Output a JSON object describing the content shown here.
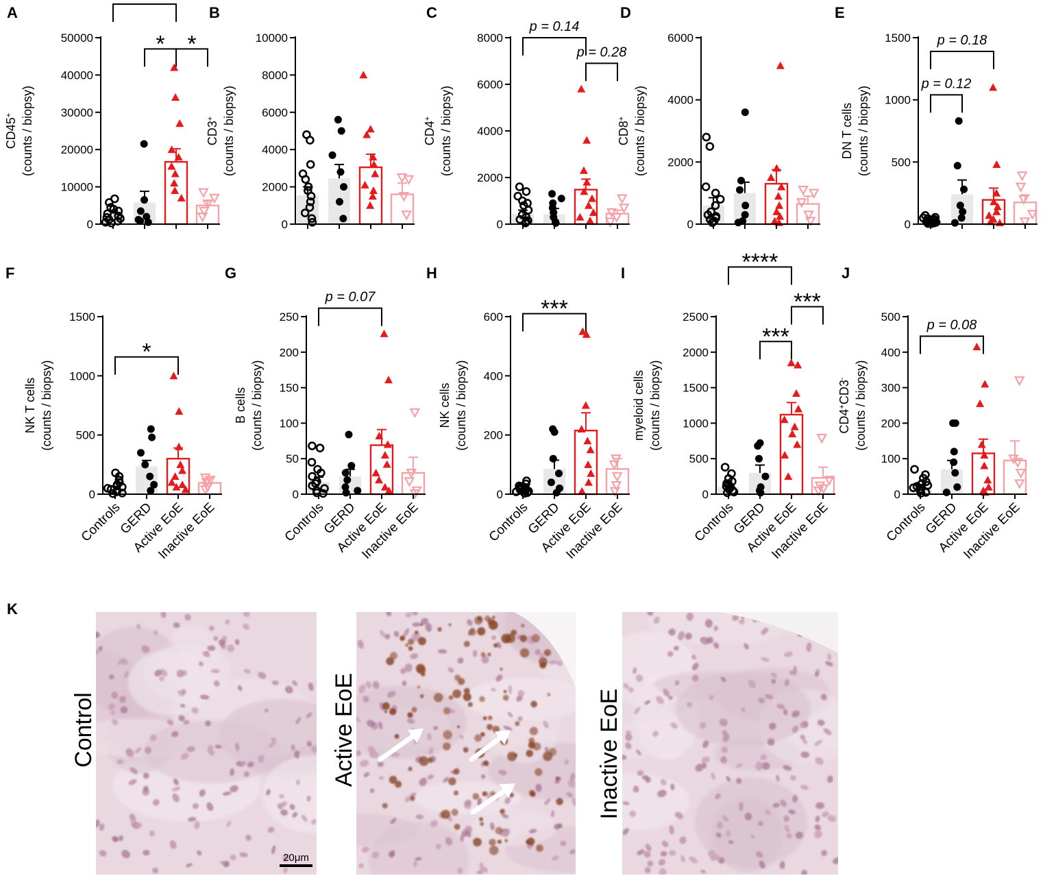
{
  "colors": {
    "controls": "#000000",
    "gerd": "#000000",
    "gerd_bar": "#e8e8e8",
    "active": "#e41a1c",
    "inactive": "#f4a1a8",
    "micro_bg": "#e9d8e0",
    "stain": "#8a4a2a"
  },
  "categories": [
    "Controls",
    "GERD",
    "Active EoE",
    "Inactive EoE"
  ],
  "chart_data": [
    {
      "panel": "A",
      "type": "bar",
      "ylabel": [
        "CD45⁺",
        "(counts / biopsy)"
      ],
      "ylim": [
        0,
        50000
      ],
      "ticks": [
        0,
        10000,
        20000,
        30000,
        40000,
        50000
      ],
      "tick_labels": [
        "0",
        "10000",
        "20000",
        "30000",
        "40000",
        "50000"
      ],
      "means": [
        2800,
        5800,
        16700,
        5000
      ],
      "sem": [
        700,
        3000,
        3500,
        1200
      ],
      "points": [
        [
          6800,
          5800,
          4500,
          3500,
          2800,
          2200,
          1800,
          1500,
          1200,
          800,
          500,
          300,
          4000
        ],
        [
          21500,
          6500,
          3500,
          2000,
          1200,
          800,
          500
        ],
        [
          42000,
          34000,
          27000,
          20000,
          18000,
          15500,
          13500,
          11000,
          9000,
          7000
        ],
        [
          8500,
          7000,
          5500,
          3500,
          2000
        ]
      ],
      "annotations": [
        {
          "text": "***",
          "from": 0,
          "to": 2,
          "y": 59000
        },
        {
          "text": "*",
          "from": 1,
          "to": 2,
          "y": 47000
        },
        {
          "text": "*",
          "from": 2,
          "to": 3,
          "y": 47000
        }
      ]
    },
    {
      "panel": "B",
      "type": "bar",
      "ylabel": [
        "CD3⁺",
        "(counts / biopsy)"
      ],
      "ylim": [
        0,
        10000
      ],
      "ticks": [
        0,
        2000,
        4000,
        6000,
        8000,
        10000
      ],
      "tick_labels": [
        "0",
        "2000",
        "4000",
        "6000",
        "8000",
        "10000"
      ],
      "means": [
        1550,
        2450,
        3050,
        1600
      ],
      "sem": [
        450,
        750,
        700,
        600
      ],
      "points": [
        [
          4800,
          4500,
          3200,
          2700,
          2000,
          1500,
          1200,
          900,
          600,
          300,
          100,
          1800,
          2400
        ],
        [
          5600,
          5000,
          3700,
          2800,
          2000,
          1200,
          300
        ],
        [
          8000,
          5100,
          4800,
          3600,
          3200,
          2700,
          2100,
          1800,
          1500,
          1000
        ],
        [
          2500,
          2400,
          1500,
          500
        ]
      ],
      "annotations": []
    },
    {
      "panel": "C",
      "type": "bar",
      "ylabel": [
        "CD4⁺",
        "(counts / biopsy)"
      ],
      "ylim": [
        0,
        8000
      ],
      "ticks": [
        0,
        2000,
        4000,
        6000,
        8000
      ],
      "tick_labels": [
        "0",
        "2000",
        "4000",
        "6000",
        "8000"
      ],
      "means": [
        450,
        420,
        1480,
        450
      ],
      "sem": [
        150,
        250,
        450,
        150
      ],
      "points": [
        [
          1600,
          1400,
          1200,
          1000,
          800,
          600,
          400,
          300,
          200,
          150,
          100,
          50,
          900
        ],
        [
          1300,
          1100,
          900,
          700,
          500,
          300,
          100,
          50
        ],
        [
          5800,
          3600,
          2300,
          1800,
          1400,
          1100,
          800,
          500,
          300,
          150
        ],
        [
          1100,
          700,
          500,
          300,
          100
        ]
      ],
      "annotations": [
        {
          "text": "p = 0.14",
          "italic": true,
          "from": 0,
          "to": 2,
          "y": 8000
        },
        {
          "text": "p = 0.28",
          "italic": true,
          "from": 2,
          "to": 3,
          "y": 6900
        }
      ]
    },
    {
      "panel": "D",
      "type": "bar",
      "ylabel": [
        "CD8⁺",
        "(counts / biopsy)"
      ],
      "ylim": [
        0,
        6000
      ],
      "ticks": [
        0,
        2000,
        4000,
        6000
      ],
      "tick_labels": [
        "0",
        "2000",
        "4000",
        "6000"
      ],
      "means": [
        600,
        1000,
        1300,
        650
      ],
      "sem": [
        250,
        350,
        450,
        250
      ],
      "points": [
        [
          2800,
          2500,
          1000,
          800,
          600,
          400,
          300,
          200,
          100,
          50,
          1200,
          150,
          250
        ],
        [
          3600,
          1400,
          1100,
          600,
          300,
          100,
          50
        ],
        [
          5100,
          1800,
          1500,
          1200,
          900,
          600,
          400,
          250,
          100,
          50
        ],
        [
          1100,
          1000,
          700,
          300,
          100
        ]
      ],
      "annotations": []
    },
    {
      "panel": "E",
      "type": "bar",
      "ylabel": [
        "DN T cells",
        "(counts / biopsy)"
      ],
      "ylim": [
        0,
        1500
      ],
      "ticks": [
        0,
        500,
        1000,
        1500
      ],
      "tick_labels": [
        "0",
        "500",
        "1000",
        "1500"
      ],
      "means": [
        30,
        240,
        195,
        175
      ],
      "sem": [
        10,
        115,
        95,
        60
      ],
      "points": [
        [
          70,
          55,
          45,
          35,
          30,
          25,
          20,
          15,
          10,
          5,
          3,
          40,
          50
        ],
        [
          830,
          470,
          280,
          150,
          100,
          50,
          10
        ],
        [
          1100,
          480,
          250,
          180,
          140,
          100,
          70,
          40,
          20,
          10
        ],
        [
          390,
          300,
          200,
          80,
          20
        ]
      ],
      "annotations": [
        {
          "text": "p = 0.18",
          "italic": true,
          "from": 0,
          "to": 2,
          "y": 1390
        },
        {
          "text": "p = 0.12",
          "italic": true,
          "from": 0,
          "to": 1,
          "y": 1040
        }
      ]
    },
    {
      "panel": "F",
      "type": "bar",
      "ylabel": [
        "NK T cells",
        "(counts / biopsy)"
      ],
      "ylim": [
        0,
        1500
      ],
      "ticks": [
        0,
        500,
        1000,
        1500
      ],
      "tick_labels": [
        "0",
        "500",
        "1000",
        "1500"
      ],
      "means": [
        50,
        235,
        300,
        95
      ],
      "sem": [
        15,
        50,
        90,
        40
      ],
      "points": [
        [
          180,
          150,
          120,
          100,
          80,
          60,
          40,
          30,
          20,
          10,
          5,
          70,
          50
        ],
        [
          550,
          480,
          350,
          250,
          150,
          80,
          30
        ],
        [
          1000,
          700,
          400,
          250,
          200,
          150,
          100,
          80,
          60,
          40
        ],
        [
          140,
          120,
          100,
          60,
          40
        ]
      ],
      "annotations": [
        {
          "text": "*",
          "from": 0,
          "to": 2,
          "y": 1160
        }
      ]
    },
    {
      "panel": "G",
      "type": "bar",
      "ylabel": [
        "B cells",
        "(counts / biopsy)"
      ],
      "ylim": [
        0,
        250
      ],
      "ticks": [
        0,
        50,
        100,
        150,
        200,
        250
      ],
      "tick_labels": [
        "0",
        "50",
        "100",
        "150",
        "200",
        "250"
      ],
      "means": [
        17,
        25,
        69,
        30
      ],
      "sem": [
        7,
        10,
        22,
        22
      ],
      "points": [
        [
          68,
          65,
          45,
          35,
          25,
          18,
          12,
          8,
          5,
          2,
          1,
          30,
          15
        ],
        [
          84,
          40,
          30,
          20,
          10,
          5,
          2
        ],
        [
          226,
          161,
          82,
          70,
          55,
          42,
          30,
          20,
          10,
          5
        ],
        [
          115,
          30,
          18,
          5,
          1
        ]
      ],
      "annotations": [
        {
          "text": "p = 0.07",
          "italic": true,
          "from": 0,
          "to": 2,
          "y": 262
        }
      ]
    },
    {
      "panel": "H",
      "type": "bar",
      "ylabel": [
        "NK  cells",
        "(counts / biopsy)"
      ],
      "ylim": [
        0,
        600
      ],
      "ticks": [
        0,
        200,
        400,
        600
      ],
      "tick_labels": [
        "0",
        "200",
        "400",
        "600"
      ],
      "means": [
        15,
        85,
        215,
        85
      ],
      "sem": [
        5,
        30,
        60,
        35
      ],
      "points": [
        [
          45,
          35,
          28,
          22,
          18,
          15,
          12,
          10,
          8,
          5,
          3,
          20,
          25
        ],
        [
          220,
          210,
          120,
          70,
          40,
          20,
          5
        ],
        [
          550,
          540,
          300,
          220,
          180,
          150,
          100,
          70,
          40,
          10
        ],
        [
          120,
          100,
          60,
          30,
          10
        ]
      ],
      "annotations": [
        {
          "text": "***",
          "from": 0,
          "to": 2,
          "y": 610
        }
      ]
    },
    {
      "panel": "I",
      "type": "bar",
      "ylabel": [
        "myeloid  cells",
        "(counts / biopsy)"
      ],
      "ylim": [
        0,
        2500
      ],
      "ticks": [
        0,
        500,
        1000,
        1500,
        2000,
        2500
      ],
      "tick_labels": [
        "0",
        "500",
        "1000",
        "1500",
        "2000",
        "2500"
      ],
      "means": [
        100,
        300,
        1120,
        230
      ],
      "sem": [
        30,
        110,
        170,
        150
      ],
      "points": [
        [
          380,
          290,
          220,
          180,
          140,
          110,
          90,
          70,
          50,
          30,
          20,
          150,
          100
        ],
        [
          720,
          680,
          500,
          250,
          100,
          50,
          20
        ],
        [
          1850,
          1820,
          1420,
          1200,
          1050,
          950,
          850,
          700,
          550,
          250
        ],
        [
          790,
          200,
          120,
          80,
          50
        ]
      ],
      "annotations": [
        {
          "text": "****",
          "from": 0,
          "to": 2,
          "y": 3200
        },
        {
          "text": "***",
          "from": 2,
          "to": 3,
          "y": 2640
        },
        {
          "text": "***",
          "from": 1,
          "to": 2,
          "y": 2150
        }
      ]
    },
    {
      "panel": "J",
      "type": "bar",
      "ylabel": [
        "CD4⁺CD3⁻",
        "(counts / biopsy)"
      ],
      "ylim": [
        0,
        500
      ],
      "ticks": [
        0,
        100,
        200,
        300,
        400,
        500
      ],
      "tick_labels": [
        "0",
        "100",
        "200",
        "300",
        "400",
        "500"
      ],
      "means": [
        20,
        70,
        115,
        95
      ],
      "sem": [
        7,
        25,
        40,
        55
      ],
      "points": [
        [
          70,
          55,
          45,
          35,
          28,
          22,
          18,
          15,
          10,
          5,
          3,
          25,
          30
        ],
        [
          200,
          200,
          120,
          90,
          60,
          20,
          5
        ],
        [
          415,
          310,
          255,
          140,
          110,
          80,
          40,
          20,
          10,
          5
        ],
        [
          320,
          100,
          90,
          60,
          30
        ]
      ],
      "annotations": [
        {
          "text": "p = 0.08",
          "italic": true,
          "from": 0,
          "to": 2,
          "y": 445
        }
      ]
    }
  ],
  "panel_k": {
    "letter": "K",
    "images": [
      {
        "label": "Control"
      },
      {
        "label": "Active EoE"
      },
      {
        "label": "Inactive EoE"
      }
    ],
    "scale_bar": "20μm"
  }
}
